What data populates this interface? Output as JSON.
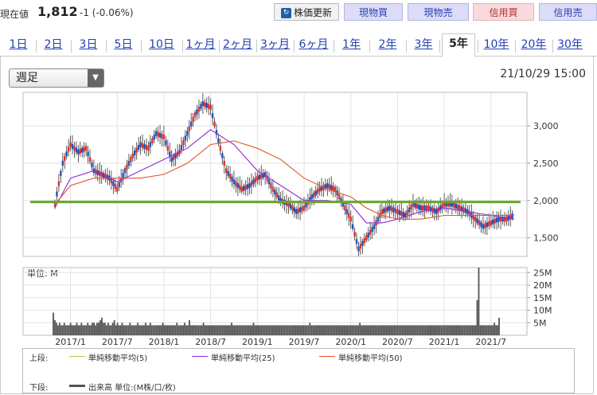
{
  "header": {
    "price_label": "現在値",
    "price_value": "1,812",
    "price_change": "-1 (-0.06%)",
    "refresh_label": "株価更新",
    "buttons": [
      "現物買",
      "現物売",
      "信用買",
      "信用売"
    ]
  },
  "tabs": [
    "1日",
    "2日",
    "3日",
    "5日",
    "10日",
    "1ヶ月",
    "2ヶ月",
    "3ヶ月",
    "6ヶ月",
    "1年",
    "2年",
    "3年",
    "5年",
    "10年",
    "20年",
    "30年"
  ],
  "active_tab": "5年",
  "period_select": "週足",
  "datetime": "21/10/29 15:00",
  "legend": {
    "upper_label": "上段:",
    "lower_label": "下段:",
    "ma5": "単純移動平均(5)",
    "ma25": "単純移動平均(25)",
    "ma50": "単純移動平均(50)",
    "volume": "出来高 単位:(M株/口/枚)",
    "ma5_color": "#b8c83a",
    "ma25_color": "#8a2bd8",
    "ma50_color": "#e0552b",
    "volume_color": "#555555"
  },
  "chart_data": [
    {
      "type": "line",
      "subtype": "candlestick",
      "x_ticks": [
        "2017/1",
        "2017/7",
        "2018/1",
        "2018/7",
        "2019/1",
        "2019/7",
        "2020/1",
        "2020/7",
        "2021/1",
        "2021/7"
      ],
      "y_ticks": [
        1500,
        2000,
        2500,
        3000
      ],
      "ylim": [
        1250,
        3450
      ],
      "reference_line": 1980,
      "reference_line_color": "#6aa62a",
      "series": [
        {
          "name": "price",
          "x": [
            "2016/11",
            "2016/12",
            "2017/1",
            "2017/2",
            "2017/3",
            "2017/4",
            "2017/5",
            "2017/6",
            "2017/7",
            "2017/8",
            "2017/9",
            "2017/10",
            "2017/11",
            "2017/12",
            "2018/1",
            "2018/2",
            "2018/3",
            "2018/4",
            "2018/5",
            "2018/6",
            "2018/7",
            "2018/8",
            "2018/9",
            "2018/10",
            "2018/11",
            "2018/12",
            "2019/1",
            "2019/2",
            "2019/3",
            "2019/4",
            "2019/5",
            "2019/6",
            "2019/7",
            "2019/8",
            "2019/9",
            "2019/10",
            "2019/11",
            "2019/12",
            "2020/1",
            "2020/2",
            "2020/3",
            "2020/4",
            "2020/5",
            "2020/6",
            "2020/7",
            "2020/8",
            "2020/9",
            "2020/10",
            "2020/11",
            "2020/12",
            "2021/1",
            "2021/2",
            "2021/3",
            "2021/4",
            "2021/5",
            "2021/6",
            "2021/7",
            "2021/8",
            "2021/9",
            "2021/10"
          ],
          "values": [
            1950,
            2500,
            2750,
            2650,
            2700,
            2400,
            2350,
            2300,
            2150,
            2400,
            2600,
            2750,
            2700,
            2900,
            2850,
            2550,
            2650,
            2900,
            3150,
            3300,
            3250,
            2800,
            2400,
            2250,
            2150,
            2200,
            2300,
            2350,
            2150,
            2000,
            1950,
            1850,
            1900,
            2050,
            2150,
            2200,
            2150,
            1950,
            1750,
            1350,
            1500,
            1650,
            1850,
            1900,
            1850,
            1800,
            1950,
            1900,
            1900,
            1850,
            1950,
            1950,
            1900,
            1850,
            1750,
            1650,
            1700,
            1750,
            1750,
            1810
          ]
        },
        {
          "name": "ma25",
          "x": [
            "2016/11",
            "2017/1",
            "2017/4",
            "2017/7",
            "2017/10",
            "2018/1",
            "2018/4",
            "2018/7",
            "2018/10",
            "2019/1",
            "2019/4",
            "2019/7",
            "2019/10",
            "2020/1",
            "2020/3",
            "2020/5",
            "2020/7",
            "2020/10",
            "2021/1",
            "2021/4",
            "2021/7",
            "2021/10"
          ],
          "values": [
            1900,
            2300,
            2400,
            2250,
            2400,
            2550,
            2700,
            2950,
            2750,
            2400,
            2200,
            2000,
            2000,
            1950,
            1700,
            1700,
            1750,
            1850,
            1900,
            1850,
            1800,
            1750
          ]
        },
        {
          "name": "ma50",
          "x": [
            "2016/11",
            "2017/1",
            "2017/4",
            "2017/7",
            "2017/10",
            "2018/1",
            "2018/4",
            "2018/7",
            "2018/10",
            "2019/1",
            "2019/4",
            "2019/7",
            "2019/10",
            "2020/1",
            "2020/3",
            "2020/5",
            "2020/7",
            "2020/10",
            "2021/1",
            "2021/4",
            "2021/7",
            "2021/10"
          ],
          "values": [
            1950,
            2200,
            2300,
            2300,
            2300,
            2350,
            2500,
            2750,
            2800,
            2700,
            2550,
            2300,
            2150,
            2050,
            1900,
            1800,
            1750,
            1750,
            1800,
            1800,
            1800,
            1800
          ]
        }
      ]
    },
    {
      "type": "bar",
      "unit_label": "単位: M",
      "y_ticks": [
        "5M",
        "10M",
        "15M",
        "20M",
        "25M"
      ],
      "ylim": [
        0,
        27
      ],
      "x_ticks": [
        "2017/1",
        "2017/7",
        "2018/1",
        "2018/7",
        "2019/1",
        "2019/7",
        "2020/1",
        "2020/7",
        "2021/1",
        "2021/7"
      ],
      "values": [
        9,
        6,
        5,
        4,
        5,
        4,
        4,
        5,
        4,
        4,
        4,
        5,
        4,
        4,
        4,
        5,
        4,
        4,
        5,
        4,
        4,
        4,
        5,
        4,
        4,
        5,
        5,
        4,
        5,
        5,
        6,
        7,
        5,
        5,
        4,
        5,
        4,
        4,
        5,
        6,
        4,
        5,
        4,
        4,
        5,
        4,
        4,
        4,
        4,
        5,
        4,
        4,
        4,
        4,
        5,
        4,
        4,
        4,
        4,
        5,
        4,
        4,
        5,
        4,
        4,
        4,
        4,
        4,
        4,
        4,
        5,
        4,
        4,
        4,
        4,
        4,
        4,
        4,
        4,
        5,
        4,
        4,
        4,
        4,
        5,
        4,
        4,
        6,
        4,
        4,
        4,
        4,
        4,
        4,
        4,
        4,
        5,
        4,
        4,
        4,
        4,
        4,
        4,
        4,
        4,
        4,
        4,
        4,
        4,
        4,
        4,
        4,
        4,
        4,
        5,
        4,
        4,
        4,
        4,
        4,
        4,
        4,
        4,
        4,
        4,
        4,
        4,
        4,
        5,
        4,
        4,
        4,
        4,
        4,
        4,
        4,
        4,
        4,
        4,
        4,
        4,
        4,
        4,
        4,
        4,
        4,
        4,
        4,
        4,
        4,
        4,
        4,
        4,
        4,
        4,
        4,
        4,
        4,
        4,
        4,
        4,
        4,
        4,
        4,
        5,
        4,
        4,
        4,
        4,
        4,
        4,
        4,
        4,
        4,
        4,
        4,
        4,
        4,
        4,
        4,
        4,
        4,
        4,
        4,
        4,
        4,
        4,
        4,
        4,
        4,
        4,
        4,
        4,
        4,
        4,
        4,
        5,
        4,
        4,
        4,
        4,
        4,
        4,
        4,
        4,
        4,
        4,
        4,
        4,
        4,
        4,
        4,
        4,
        4,
        4,
        4,
        4,
        4,
        4,
        4,
        4,
        4,
        4,
        4,
        4,
        4,
        4,
        4,
        4,
        4,
        4,
        4,
        4,
        4,
        4,
        4,
        4,
        4,
        4,
        4,
        4,
        4,
        4,
        4,
        4,
        4,
        4,
        4,
        4,
        4,
        4,
        4,
        4,
        4,
        4,
        4,
        4,
        4,
        4,
        4,
        4,
        4,
        4,
        4,
        4,
        4,
        4,
        4,
        4,
        4,
        4,
        14,
        27,
        4,
        4,
        4,
        4,
        4,
        4,
        4,
        4,
        4,
        5,
        4,
        4,
        7
      ]
    }
  ]
}
